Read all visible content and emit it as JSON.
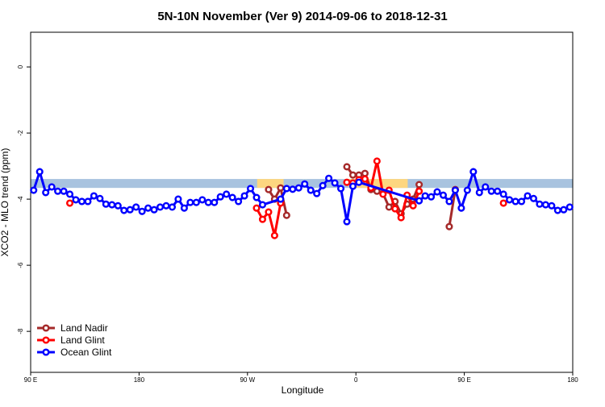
{
  "chart_data": {
    "type": "line",
    "title": "5N-10N November (Ver 9)   2014-09-06 to 2018-12-31",
    "x_label": "Longitude",
    "y_label": "XCO2 - MLO trend (ppm)",
    "xlim": [
      90,
      540
    ],
    "ylim": [
      -9.24,
      1.05
    ],
    "xticks": [
      {
        "value": 90,
        "label": "90 E"
      },
      {
        "value": 180,
        "label": "180"
      },
      {
        "value": 270,
        "label": "90 W"
      },
      {
        "value": 360,
        "label": "0"
      },
      {
        "value": 450,
        "label": "90 E"
      },
      {
        "value": 540,
        "label": "180"
      }
    ],
    "yticks": [
      -8,
      -6,
      -4,
      -2,
      0
    ],
    "legend": "bottom-left",
    "band": {
      "range": [
        -3.66,
        -3.39
      ],
      "color": "#a8c3df"
    },
    "highlight": {
      "color": "#fdd680",
      "xranges": [
        [
          278,
          300
        ],
        [
          354,
          403
        ]
      ]
    },
    "series": [
      {
        "name": "Land Nadir",
        "color": "#a52a2a",
        "x": [
          287.5,
          292.5,
          297.5,
          302.5,
          307.5,
          352.5,
          357.5,
          362.5,
          367.5,
          372.5,
          377.5,
          382.5,
          387.5,
          392.5,
          397.5,
          402.5,
          407.5,
          412.5,
          417.5,
          437.5,
          442.5
        ],
        "values": [
          -3.71,
          -4.0,
          -3.66,
          -4.49,
          null,
          -3.02,
          -3.27,
          -3.27,
          -3.22,
          -3.71,
          -3.76,
          -3.83,
          -4.24,
          -4.07,
          -4.44,
          -4.15,
          -4.0,
          -3.56,
          null,
          -4.83,
          -3.71
        ]
      },
      {
        "name": "Land Glint",
        "color": "#ff0000",
        "x": [
          122.5,
          127.5,
          277.5,
          282.5,
          287.5,
          292.5,
          297.5,
          302.5,
          352.5,
          357.5,
          362.5,
          367.5,
          372.5,
          377.5,
          382.5,
          387.5,
          392.5,
          397.5,
          402.5,
          407.5,
          412.5,
          417.5,
          482.5
        ],
        "values": [
          -4.12,
          null,
          -4.27,
          -4.61,
          -4.39,
          -5.1,
          -4.12,
          null,
          -3.49,
          -3.51,
          -3.41,
          -3.39,
          -3.66,
          -2.85,
          -3.85,
          -3.73,
          -4.29,
          -4.56,
          -3.88,
          -4.2,
          -3.76,
          null,
          -4.12
        ]
      },
      {
        "name": "Ocean Glint",
        "color": "#0000ff",
        "x": [
          92.5,
          97.5,
          102.5,
          107.5,
          112.5,
          117.5,
          122.5,
          127.5,
          132.5,
          137.5,
          142.5,
          147.5,
          152.5,
          157.5,
          162.5,
          167.5,
          172.5,
          177.5,
          182.5,
          187.5,
          192.5,
          197.5,
          202.5,
          207.5,
          212.5,
          217.5,
          222.5,
          227.5,
          232.5,
          237.5,
          242.5,
          247.5,
          252.5,
          257.5,
          262.5,
          267.5,
          272.5,
          277.5,
          282.5,
          297.5,
          302.5,
          307.5,
          312.5,
          317.5,
          322.5,
          327.5,
          332.5,
          337.5,
          342.5,
          347.5,
          352.5,
          357.5,
          362.5,
          412.5,
          417.5,
          422.5,
          427.5,
          432.5,
          437.5,
          442.5,
          447.5,
          452.5,
          457.5,
          462.5,
          467.5,
          472.5,
          477.5,
          482.5,
          487.5,
          492.5,
          497.5,
          502.5,
          507.5,
          512.5,
          517.5,
          522.5,
          527.5,
          532.5,
          537.5
        ],
        "values": [
          -3.73,
          -3.17,
          -3.8,
          -3.63,
          -3.76,
          -3.76,
          -3.85,
          -4.02,
          -4.07,
          -4.07,
          -3.9,
          -3.98,
          -4.15,
          -4.17,
          -4.2,
          -4.34,
          -4.32,
          -4.24,
          -4.37,
          -4.27,
          -4.32,
          -4.24,
          -4.2,
          -4.24,
          -4.0,
          -4.27,
          -4.1,
          -4.1,
          -4.02,
          -4.1,
          -4.1,
          -3.93,
          -3.85,
          -3.95,
          -4.07,
          -3.9,
          -3.68,
          -3.95,
          -4.17,
          -4.0,
          -3.68,
          -3.7,
          -3.66,
          -3.54,
          -3.73,
          -3.83,
          -3.59,
          -3.37,
          -3.51,
          -3.68,
          -4.68,
          -3.61,
          -3.49,
          -4.05,
          -3.9,
          -3.93,
          -3.78,
          -3.88,
          -4.07,
          -3.73,
          -4.27,
          -3.73,
          -3.17,
          -3.8,
          -3.63,
          -3.76,
          -3.76,
          -3.85,
          -4.02,
          -4.07,
          -4.07,
          -3.9,
          -3.98,
          -4.15,
          -4.17,
          -4.2,
          -4.34,
          -4.32,
          -4.24
        ]
      }
    ]
  }
}
